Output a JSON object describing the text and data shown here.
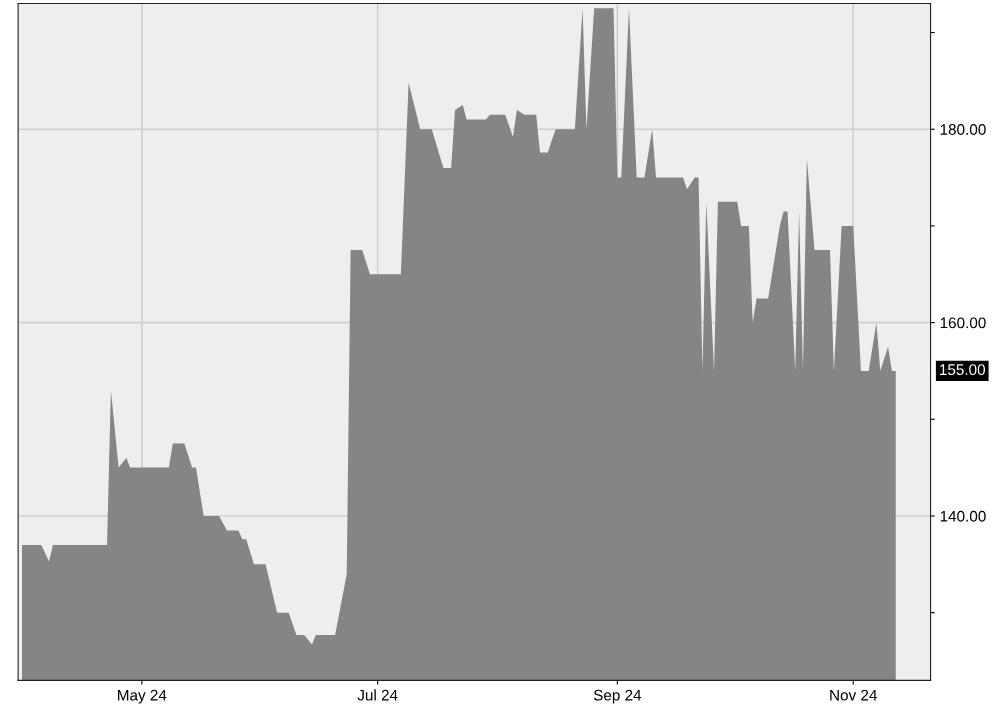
{
  "chart_data": {
    "type": "area",
    "x": [
      "2024-03-31",
      "2024-04-05",
      "2024-04-07",
      "2024-04-08",
      "2024-04-22",
      "2024-04-23",
      "2024-04-25",
      "2024-04-27",
      "2024-04-28",
      "2024-05-08",
      "2024-05-09",
      "2024-05-12",
      "2024-05-14",
      "2024-05-15",
      "2024-05-17",
      "2024-05-21",
      "2024-05-23",
      "2024-05-26",
      "2024-05-27",
      "2024-05-28",
      "2024-05-30",
      "2024-06-02",
      "2024-06-05",
      "2024-06-08",
      "2024-06-10",
      "2024-06-12",
      "2024-06-14",
      "2024-06-15",
      "2024-06-20",
      "2024-06-23",
      "2024-06-24",
      "2024-06-27",
      "2024-06-29",
      "2024-07-07",
      "2024-07-09",
      "2024-07-12",
      "2024-07-15",
      "2024-07-18",
      "2024-07-20",
      "2024-07-21",
      "2024-07-23",
      "2024-07-24",
      "2024-07-29",
      "2024-07-30",
      "2024-08-03",
      "2024-08-05",
      "2024-08-06",
      "2024-08-08",
      "2024-08-11",
      "2024-08-12",
      "2024-08-14",
      "2024-08-16",
      "2024-08-21",
      "2024-08-23",
      "2024-08-24",
      "2024-08-26",
      "2024-08-31",
      "2024-09-01",
      "2024-09-02",
      "2024-09-04",
      "2024-09-06",
      "2024-09-08",
      "2024-09-10",
      "2024-09-11",
      "2024-09-18",
      "2024-09-19",
      "2024-09-21",
      "2024-09-22",
      "2024-09-23",
      "2024-09-24",
      "2024-09-26",
      "2024-09-27",
      "2024-10-02",
      "2024-10-03",
      "2024-10-05",
      "2024-10-06",
      "2024-10-07",
      "2024-10-10",
      "2024-10-13",
      "2024-10-14",
      "2024-10-15",
      "2024-10-17",
      "2024-10-18",
      "2024-10-19",
      "2024-10-20",
      "2024-10-22",
      "2024-10-26",
      "2024-10-27",
      "2024-10-29",
      "2024-11-01",
      "2024-11-03",
      "2024-11-05",
      "2024-11-07",
      "2024-11-08",
      "2024-11-10",
      "2024-11-11",
      "2024-11-12"
    ],
    "series": [
      {
        "color": "#858585",
        "values": [
          137.0,
          137.0,
          135.3,
          137.0,
          137.0,
          153.0,
          145.0,
          146.0,
          145.0,
          145.0,
          147.5,
          147.5,
          145.0,
          145.0,
          140.0,
          140.0,
          138.5,
          138.5,
          137.6,
          137.6,
          135.0,
          135.0,
          130.0,
          130.0,
          127.7,
          127.7,
          126.7,
          127.7,
          127.7,
          134.0,
          167.5,
          167.5,
          165.0,
          165.0,
          184.8,
          180.0,
          180.0,
          176.0,
          176.0,
          182.0,
          182.5,
          181.0,
          181.0,
          181.5,
          181.5,
          179.2,
          182.0,
          181.5,
          181.5,
          177.6,
          177.6,
          180.0,
          180.0,
          192.5,
          180.0,
          192.5,
          192.5,
          175.0,
          175.0,
          192.5,
          175.0,
          175.0,
          180.0,
          175.0,
          175.0,
          173.8,
          175.0,
          175.0,
          155.0,
          172.5,
          155.0,
          172.5,
          172.5,
          170.0,
          170.0,
          160.0,
          162.5,
          162.5,
          170.0,
          171.5,
          171.5,
          155.0,
          171.5,
          155.0,
          177.0,
          167.5,
          167.5,
          155.0,
          170.0,
          170.0,
          155.0,
          155.0,
          160.0,
          155.0,
          157.5,
          155.0,
          155.0
        ]
      }
    ],
    "xlim": [
      "2024-03-30",
      "2024-11-21"
    ],
    "xticks": [
      {
        "value": "2024-05-01",
        "label": "May 24"
      },
      {
        "value": "2024-07-01",
        "label": "Jul 24"
      },
      {
        "value": "2024-09-01",
        "label": "Sep 24"
      },
      {
        "value": "2024-11-01",
        "label": "Nov 24"
      }
    ],
    "ylim": [
      123,
      193
    ],
    "yticks": [
      {
        "value": 130,
        "label": null
      },
      {
        "value": 140,
        "label": "140.00"
      },
      {
        "value": 150,
        "label": null
      },
      {
        "value": 160,
        "label": "160.00"
      },
      {
        "value": 170,
        "label": null
      },
      {
        "value": 180,
        "label": "180.00"
      },
      {
        "value": 190,
        "label": null
      }
    ],
    "grid": true,
    "annotations": [
      "155.00"
    ]
  }
}
